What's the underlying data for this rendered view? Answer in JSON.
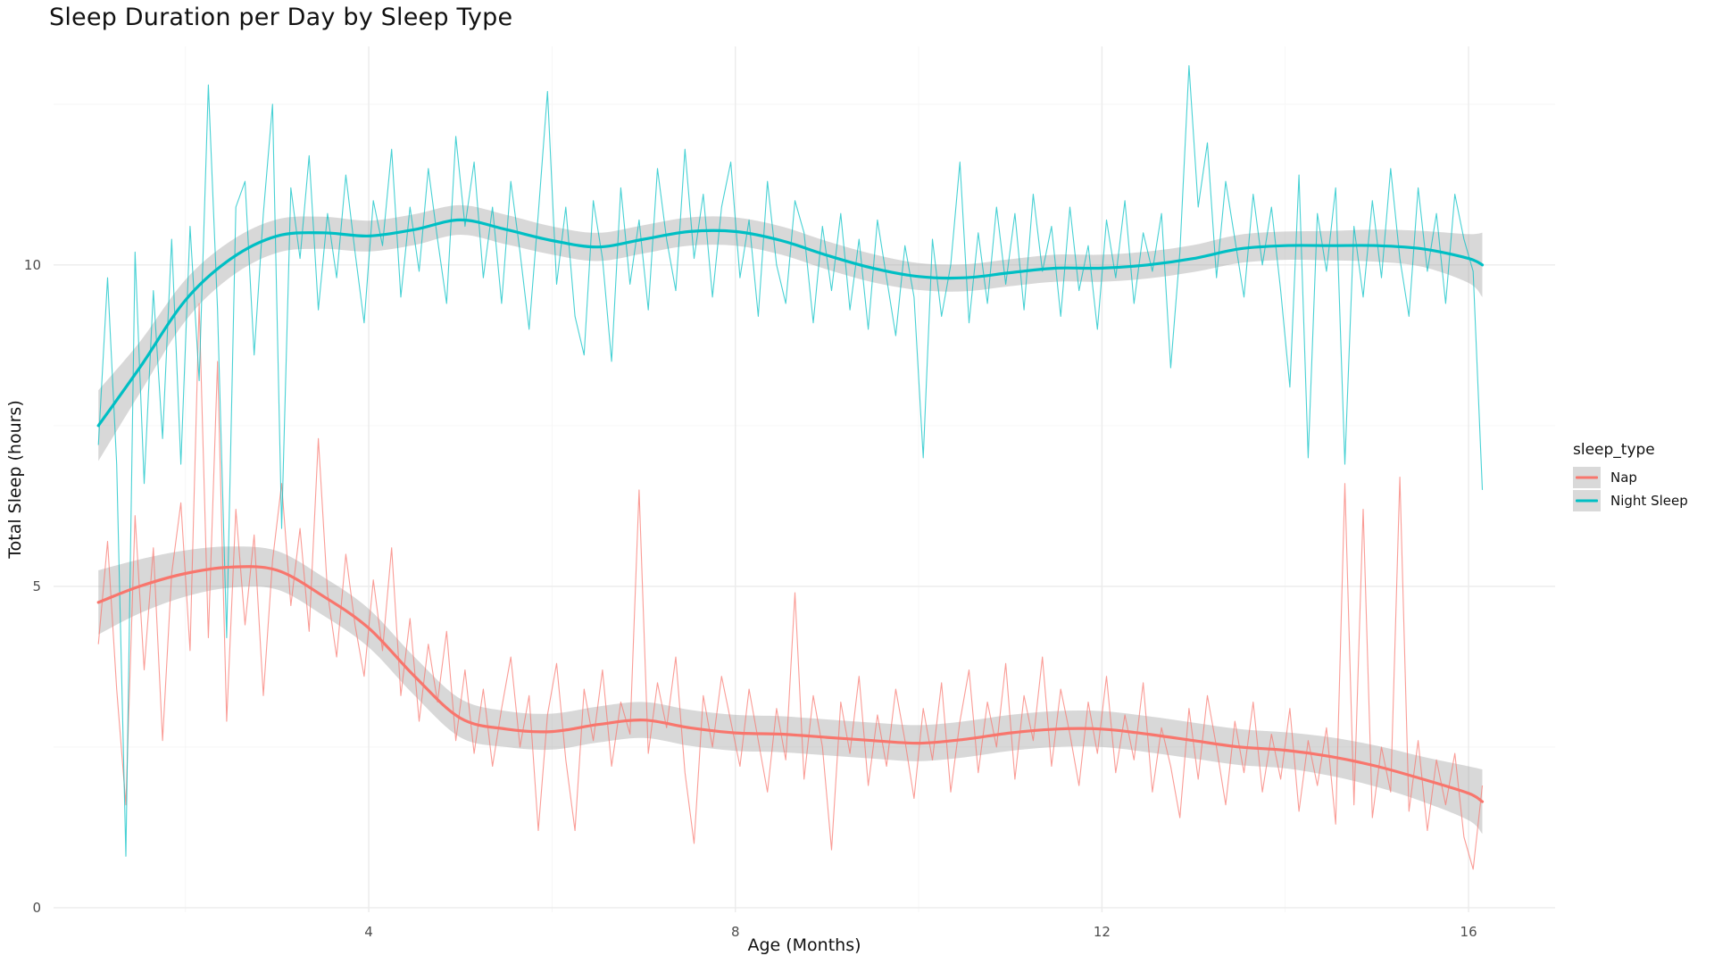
{
  "chart_data": {
    "type": "line",
    "title": "Sleep Duration per Day by Sleep Type",
    "xlabel": "Age (Months)",
    "ylabel": "Total Sleep (hours)",
    "xlim": [
      0.561,
      16.944
    ],
    "ylim": [
      -0.07,
      13.4
    ],
    "grid": "on",
    "x_ticks": {
      "values": [
        4,
        8,
        12,
        16
      ],
      "labels": [
        "4",
        "8",
        "12",
        "16"
      ]
    },
    "y_ticks": {
      "values": [
        0,
        5,
        10
      ],
      "labels": [
        "0",
        "5",
        "10"
      ]
    },
    "x_minor": [
      2,
      6,
      10,
      14
    ],
    "y_minor": [
      2.5,
      7.5,
      12.5
    ],
    "legend": {
      "title": "sleep_type",
      "position": "right",
      "entries": [
        {
          "label": "Nap",
          "color": "#F8766D"
        },
        {
          "label": "Night Sleep",
          "color": "#00BFC4"
        }
      ]
    },
    "colors": {
      "nap": "#F8766D",
      "night": "#00BFC4",
      "ribbon": "rgba(153,153,153,0.38)",
      "grid_major": "#EBEBEB",
      "grid_minor": "#F4F4F4",
      "tick_text": "#4d4d4d"
    },
    "series": [
      {
        "name": "Nap",
        "color": "#F8766D",
        "raw": {
          "x_start": 1.05,
          "x_step": 0.1,
          "values": [
            4.1,
            5.7,
            3.4,
            1.6,
            6.1,
            3.7,
            5.6,
            2.6,
            5.2,
            6.3,
            4.0,
            9.4,
            4.2,
            8.5,
            2.9,
            6.2,
            4.4,
            5.8,
            3.3,
            5.4,
            6.6,
            4.7,
            5.9,
            4.3,
            7.3,
            4.9,
            3.9,
            5.5,
            4.4,
            3.6,
            5.1,
            4.0,
            5.6,
            3.3,
            4.5,
            2.9,
            4.1,
            3.2,
            4.3,
            2.6,
            3.7,
            2.4,
            3.4,
            2.2,
            3.1,
            3.9,
            2.5,
            3.3,
            1.2,
            3.0,
            3.8,
            2.3,
            1.2,
            3.4,
            2.6,
            3.7,
            2.2,
            3.2,
            2.7,
            6.5,
            2.4,
            3.5,
            2.8,
            3.9,
            2.1,
            1.0,
            3.3,
            2.5,
            3.6,
            2.9,
            2.2,
            3.4,
            2.6,
            1.8,
            3.1,
            2.3,
            4.9,
            2.0,
            3.3,
            2.5,
            0.9,
            3.2,
            2.4,
            3.6,
            1.9,
            3.0,
            2.2,
            3.4,
            2.6,
            1.7,
            3.1,
            2.3,
            3.5,
            1.8,
            2.9,
            3.7,
            2.1,
            3.2,
            2.5,
            3.8,
            2.0,
            3.3,
            2.6,
            3.9,
            2.2,
            3.4,
            2.7,
            1.9,
            3.2,
            2.4,
            3.6,
            2.1,
            3.0,
            2.3,
            3.5,
            1.8,
            2.8,
            2.2,
            1.4,
            3.1,
            2.0,
            3.3,
            2.5,
            1.6,
            2.9,
            2.1,
            3.2,
            1.8,
            2.7,
            2.0,
            3.1,
            1.5,
            2.6,
            1.9,
            2.8,
            1.3,
            6.6,
            1.6,
            6.2,
            1.4,
            2.5,
            1.8,
            6.7,
            1.5,
            2.6,
            1.2,
            2.3,
            1.6,
            2.4,
            1.1,
            0.6,
            1.9
          ]
        },
        "smooth": {
          "x": [
            1.05,
            1.5,
            2.0,
            2.5,
            3.0,
            3.5,
            4.0,
            4.5,
            5.0,
            5.5,
            6.0,
            6.5,
            7.0,
            7.5,
            8.0,
            8.5,
            9.0,
            9.5,
            10.0,
            10.5,
            11.0,
            11.5,
            12.0,
            12.5,
            13.0,
            13.5,
            14.0,
            14.5,
            15.0,
            15.5,
            16.0,
            16.15
          ],
          "y": [
            4.75,
            5.0,
            5.2,
            5.3,
            5.25,
            4.85,
            4.35,
            3.6,
            2.95,
            2.78,
            2.74,
            2.85,
            2.92,
            2.8,
            2.72,
            2.7,
            2.65,
            2.6,
            2.56,
            2.62,
            2.72,
            2.78,
            2.78,
            2.7,
            2.6,
            2.5,
            2.45,
            2.35,
            2.2,
            2.0,
            1.78,
            1.65
          ],
          "ci": [
            0.5,
            0.42,
            0.36,
            0.32,
            0.3,
            0.3,
            0.3,
            0.3,
            0.3,
            0.28,
            0.28,
            0.28,
            0.28,
            0.28,
            0.28,
            0.28,
            0.28,
            0.28,
            0.28,
            0.28,
            0.28,
            0.28,
            0.28,
            0.28,
            0.28,
            0.28,
            0.28,
            0.3,
            0.32,
            0.35,
            0.42,
            0.5
          ]
        }
      },
      {
        "name": "Night Sleep",
        "color": "#00BFC4",
        "raw": {
          "x_start": 1.05,
          "x_step": 0.1,
          "values": [
            7.2,
            9.8,
            6.9,
            0.8,
            10.2,
            6.6,
            9.6,
            7.3,
            10.4,
            6.9,
            10.6,
            8.2,
            12.8,
            9.3,
            4.2,
            10.9,
            11.3,
            8.6,
            10.8,
            12.5,
            5.9,
            11.2,
            10.1,
            11.7,
            9.3,
            10.8,
            9.8,
            11.4,
            10.2,
            9.1,
            11.0,
            10.3,
            11.8,
            9.5,
            10.9,
            9.9,
            11.5,
            10.4,
            9.4,
            12.0,
            10.6,
            11.6,
            9.8,
            10.9,
            9.4,
            11.3,
            10.2,
            9.0,
            10.8,
            12.7,
            9.7,
            10.9,
            9.2,
            8.6,
            11.0,
            10.1,
            8.5,
            11.2,
            9.7,
            10.7,
            9.3,
            11.5,
            10.4,
            9.6,
            11.8,
            10.1,
            11.1,
            9.5,
            10.9,
            11.6,
            9.8,
            10.7,
            9.2,
            11.3,
            10.0,
            9.4,
            11.0,
            10.5,
            9.1,
            10.6,
            9.6,
            10.8,
            9.3,
            10.4,
            9.0,
            10.7,
            9.8,
            8.9,
            10.3,
            9.5,
            7.0,
            10.4,
            9.2,
            10.0,
            11.6,
            9.1,
            10.5,
            9.4,
            10.9,
            9.7,
            10.8,
            9.3,
            11.1,
            9.9,
            10.6,
            9.2,
            10.9,
            9.6,
            10.3,
            9.0,
            10.7,
            9.8,
            11.0,
            9.4,
            10.5,
            9.9,
            10.8,
            8.4,
            10.2,
            13.1,
            10.9,
            11.9,
            9.8,
            11.3,
            10.4,
            9.5,
            11.1,
            10.0,
            10.9,
            9.6,
            8.1,
            11.4,
            7.0,
            10.8,
            9.9,
            11.2,
            6.9,
            10.6,
            9.5,
            11.0,
            9.8,
            11.5,
            10.1,
            9.2,
            11.2,
            9.9,
            10.8,
            9.4,
            11.1,
            10.4,
            9.9,
            6.5
          ]
        },
        "smooth": {
          "x": [
            1.05,
            1.5,
            2.0,
            2.5,
            3.0,
            3.5,
            4.0,
            4.5,
            5.0,
            5.5,
            6.0,
            6.5,
            7.0,
            7.5,
            8.0,
            8.5,
            9.0,
            9.5,
            10.0,
            10.5,
            11.0,
            11.5,
            12.0,
            12.5,
            13.0,
            13.5,
            14.0,
            14.5,
            15.0,
            15.5,
            16.0,
            16.15
          ],
          "y": [
            7.5,
            8.4,
            9.45,
            10.1,
            10.45,
            10.5,
            10.45,
            10.55,
            10.7,
            10.55,
            10.38,
            10.28,
            10.4,
            10.52,
            10.52,
            10.38,
            10.15,
            9.95,
            9.82,
            9.8,
            9.88,
            9.95,
            9.95,
            10.0,
            10.1,
            10.25,
            10.3,
            10.3,
            10.3,
            10.25,
            10.1,
            10.0
          ],
          "ci": [
            0.55,
            0.4,
            0.32,
            0.28,
            0.26,
            0.25,
            0.24,
            0.24,
            0.23,
            0.23,
            0.22,
            0.22,
            0.22,
            0.22,
            0.22,
            0.22,
            0.22,
            0.22,
            0.21,
            0.21,
            0.21,
            0.21,
            0.21,
            0.21,
            0.21,
            0.22,
            0.22,
            0.23,
            0.25,
            0.28,
            0.38,
            0.5
          ]
        }
      }
    ]
  }
}
